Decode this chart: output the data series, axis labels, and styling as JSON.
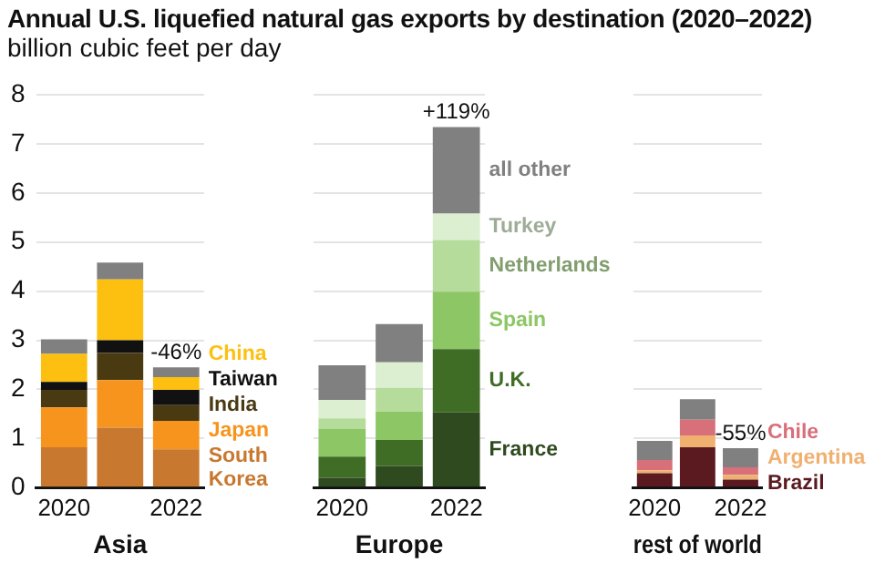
{
  "chart_data": [
    {
      "type": "bar",
      "title": "Annual U.S. liquefied natural gas exports by destination (2020–2022)",
      "subtitle": "billion cubic feet per day",
      "xlabel": "Asia",
      "categories": [
        "2020",
        null,
        "2022"
      ],
      "stacked": true,
      "ylim": [
        0,
        8
      ],
      "yticks": [
        0,
        1,
        2,
        3,
        4,
        5,
        6,
        7,
        8
      ],
      "grid": "y",
      "series": [
        {
          "name": "South Korea",
          "color": "#c8782f",
          "values": [
            0.82,
            1.22,
            0.78
          ]
        },
        {
          "name": "Japan",
          "color": "#f7941d",
          "values": [
            0.81,
            0.97,
            0.58
          ]
        },
        {
          "name": "India",
          "color": "#4a3a12",
          "values": [
            0.36,
            0.55,
            0.32
          ]
        },
        {
          "name": "Taiwan",
          "color": "#111111",
          "values": [
            0.16,
            0.26,
            0.31
          ]
        },
        {
          "name": "China",
          "color": "#fdc010",
          "values": [
            0.57,
            1.24,
            0.26
          ]
        },
        {
          "color": "#808080",
          "values": [
            0.3,
            0.34,
            0.2
          ]
        }
      ],
      "annotations": [
        "-46%"
      ]
    },
    {
      "type": "bar",
      "xlabel": "Europe",
      "categories": [
        "2020",
        null,
        "2022"
      ],
      "stacked": true,
      "ylim": [
        0,
        8
      ],
      "yticks": [
        0,
        1,
        2,
        3,
        4,
        5,
        6,
        7,
        8
      ],
      "grid": "y",
      "tick_labels": "x",
      "series": [
        {
          "name": "France",
          "color": "#2e4a1e",
          "values": [
            0.2,
            0.44,
            1.53
          ]
        },
        {
          "name": "U.K.",
          "color": "#3f6d26",
          "values": [
            0.43,
            0.53,
            1.29
          ]
        },
        {
          "name": "Spain",
          "color": "#8cc665",
          "values": [
            0.56,
            0.58,
            1.17
          ]
        },
        {
          "name": "Netherlands",
          "color": "#b5dc9a",
          "values": [
            0.22,
            0.48,
            1.05
          ]
        },
        {
          "name": "Turkey",
          "color": "#dcefd0",
          "values": [
            0.37,
            0.52,
            0.54
          ]
        },
        {
          "name": "all other",
          "color": "#808080",
          "values": [
            0.71,
            0.78,
            1.76
          ]
        }
      ],
      "annotations": [
        "+119%"
      ]
    },
    {
      "type": "bar",
      "xlabel": "rest of world",
      "categories": [
        "2020",
        null,
        "2022"
      ],
      "stacked": true,
      "ylim": [
        0,
        8
      ],
      "yticks": [
        0,
        1,
        2,
        3,
        4,
        5,
        6,
        7,
        8
      ],
      "grid": "y",
      "tick_labels": "x",
      "series": [
        {
          "name": "Brazil",
          "color": "#5a1a20",
          "values": [
            0.29,
            0.82,
            0.16
          ]
        },
        {
          "name": "Argentina",
          "color": "#f0b070",
          "values": [
            0.06,
            0.24,
            0.1
          ]
        },
        {
          "name": "Chile",
          "color": "#d8707a",
          "values": [
            0.21,
            0.32,
            0.15
          ]
        },
        {
          "color": "#808080",
          "values": [
            0.39,
            0.42,
            0.39
          ]
        }
      ],
      "annotations": [
        "-55%"
      ]
    }
  ]
}
